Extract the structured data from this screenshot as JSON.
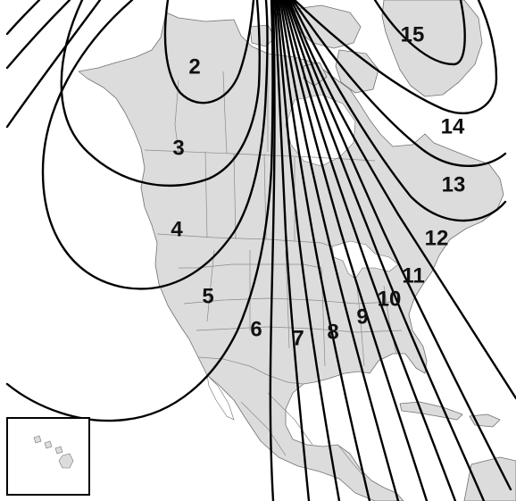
{
  "zones": [
    {
      "label": "2"
    },
    {
      "label": "3"
    },
    {
      "label": "4"
    },
    {
      "label": "5"
    },
    {
      "label": "6"
    },
    {
      "label": "7"
    },
    {
      "label": "8"
    },
    {
      "label": "9"
    },
    {
      "label": "10"
    },
    {
      "label": "11"
    },
    {
      "label": "12"
    },
    {
      "label": "13"
    },
    {
      "label": "14"
    },
    {
      "label": "15"
    }
  ],
  "inset": {
    "region": "Hawaii"
  },
  "colors": {
    "land": "#dcdcdc",
    "borders": "#707070",
    "contours": "#000000",
    "background": "#ffffff"
  }
}
